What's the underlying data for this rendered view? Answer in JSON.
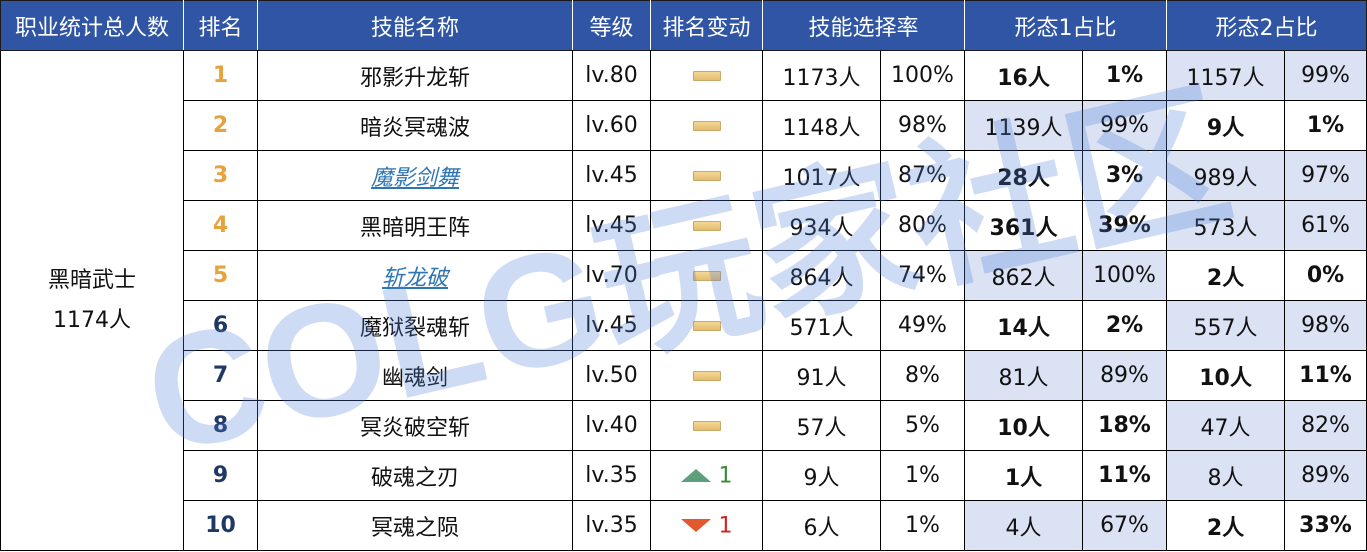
{
  "colors": {
    "header_bg": "#2f55a4",
    "header_text": "#ffffff",
    "rank_top5": "#e6a23c",
    "rank_other": "#1f3864",
    "link_text": "#2e75b6",
    "shade": "#dae2f3",
    "up": "#5e9e7a",
    "down": "#e2592f",
    "watermark": "#4f7dd6"
  },
  "header": {
    "total": "职业统计总人数",
    "rank": "排名",
    "skill_name": "技能名称",
    "level": "等级",
    "rank_change": "排名变动",
    "selection_rate": "技能选择率",
    "form1": "形态1占比",
    "form2": "形态2占比"
  },
  "class": {
    "name": "黑暗武士",
    "total": "1174人"
  },
  "rows": [
    {
      "rank": "1",
      "name": "邪影升龙斩",
      "link": false,
      "level": "lv.80",
      "change": "flat",
      "change_num": "",
      "sel_count": "1173人",
      "sel_pct": "100%",
      "f1_count": "16人",
      "f1_pct": "1%",
      "f1_bold": true,
      "f2_count": "1157人",
      "f2_pct": "99%",
      "f2_bold": false
    },
    {
      "rank": "2",
      "name": "暗炎冥魂波",
      "link": false,
      "level": "lv.60",
      "change": "flat",
      "change_num": "",
      "sel_count": "1148人",
      "sel_pct": "98%",
      "f1_count": "1139人",
      "f1_pct": "99%",
      "f1_bold": false,
      "f2_count": "9人",
      "f2_pct": "1%",
      "f2_bold": true
    },
    {
      "rank": "3",
      "name": "魔影剑舞",
      "link": true,
      "level": "lv.45",
      "change": "flat",
      "change_num": "",
      "sel_count": "1017人",
      "sel_pct": "87%",
      "f1_count": "28人",
      "f1_pct": "3%",
      "f1_bold": true,
      "f2_count": "989人",
      "f2_pct": "97%",
      "f2_bold": false
    },
    {
      "rank": "4",
      "name": "黑暗明王阵",
      "link": false,
      "level": "lv.45",
      "change": "flat",
      "change_num": "",
      "sel_count": "934人",
      "sel_pct": "80%",
      "f1_count": "361人",
      "f1_pct": "39%",
      "f1_bold": true,
      "f2_count": "573人",
      "f2_pct": "61%",
      "f2_bold": false
    },
    {
      "rank": "5",
      "name": "斩龙破",
      "link": true,
      "level": "lv.70",
      "change": "flat",
      "change_num": "",
      "sel_count": "864人",
      "sel_pct": "74%",
      "f1_count": "862人",
      "f1_pct": "100%",
      "f1_bold": false,
      "f2_count": "2人",
      "f2_pct": "0%",
      "f2_bold": true
    },
    {
      "rank": "6",
      "name": "魔狱裂魂斩",
      "link": false,
      "level": "lv.45",
      "change": "flat",
      "change_num": "",
      "sel_count": "571人",
      "sel_pct": "49%",
      "f1_count": "14人",
      "f1_pct": "2%",
      "f1_bold": true,
      "f2_count": "557人",
      "f2_pct": "98%",
      "f2_bold": false
    },
    {
      "rank": "7",
      "name": "幽魂剑",
      "link": false,
      "level": "lv.50",
      "change": "flat",
      "change_num": "",
      "sel_count": "91人",
      "sel_pct": "8%",
      "f1_count": "81人",
      "f1_pct": "89%",
      "f1_bold": false,
      "f2_count": "10人",
      "f2_pct": "11%",
      "f2_bold": true
    },
    {
      "rank": "8",
      "name": "冥炎破空斩",
      "link": false,
      "level": "lv.40",
      "change": "flat",
      "change_num": "",
      "sel_count": "57人",
      "sel_pct": "5%",
      "f1_count": "10人",
      "f1_pct": "18%",
      "f1_bold": true,
      "f2_count": "47人",
      "f2_pct": "82%",
      "f2_bold": false
    },
    {
      "rank": "9",
      "name": "破魂之刃",
      "link": false,
      "level": "lv.35",
      "change": "up",
      "change_num": "1",
      "sel_count": "9人",
      "sel_pct": "1%",
      "f1_count": "1人",
      "f1_pct": "11%",
      "f1_bold": true,
      "f2_count": "8人",
      "f2_pct": "89%",
      "f2_bold": false
    },
    {
      "rank": "10",
      "name": "冥魂之陨",
      "link": false,
      "level": "lv.35",
      "change": "down",
      "change_num": "1",
      "sel_count": "6人",
      "sel_pct": "1%",
      "f1_count": "4人",
      "f1_pct": "67%",
      "f1_bold": false,
      "f2_count": "2人",
      "f2_pct": "33%",
      "f2_bold": true
    }
  ],
  "watermark": "COLG玩家社区"
}
